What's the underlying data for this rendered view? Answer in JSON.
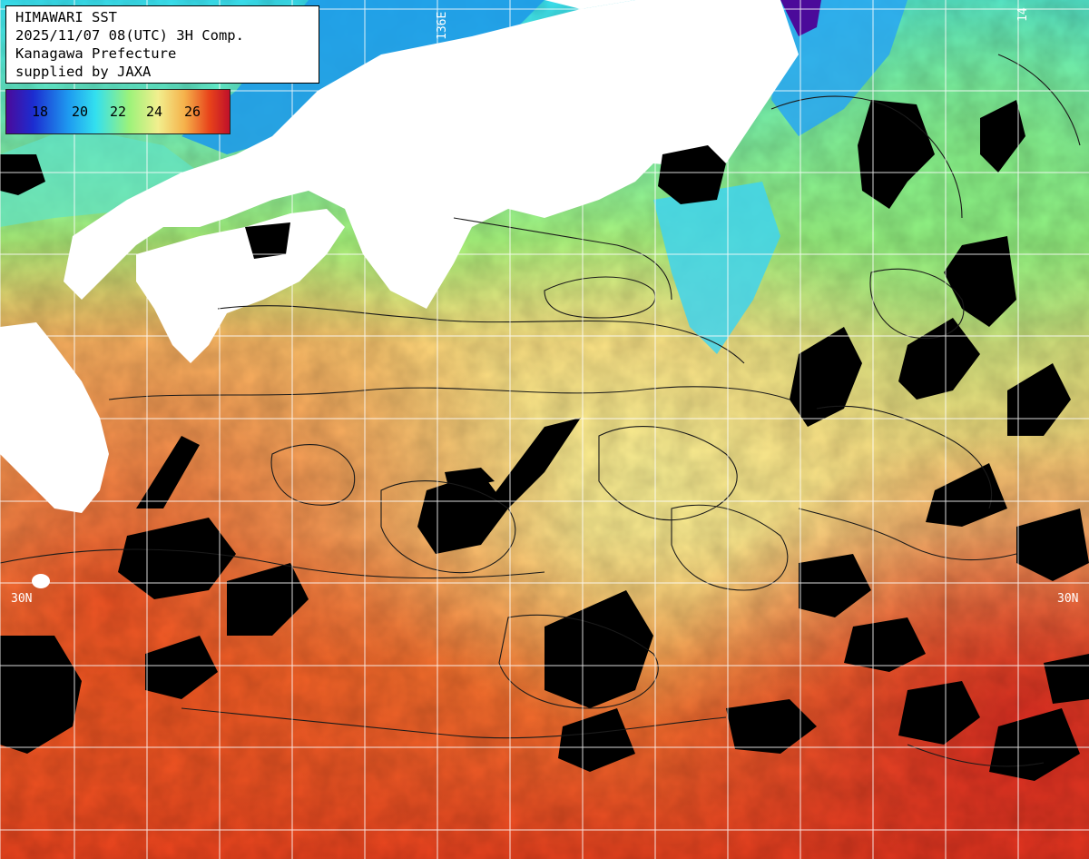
{
  "header": {
    "line1": "HIMAWARI SST",
    "line2": "2025/11/07 08(UTC) 3H Comp.",
    "line3": "Kanagawa Prefecture",
    "line4": "supplied by JAXA"
  },
  "legend": {
    "ticks": [
      "18",
      "20",
      "22",
      "24",
      "26"
    ]
  },
  "grid_labels": {
    "lon_left": "136E",
    "lon_right": "14",
    "lat_left": "30N",
    "lat_right": "30N"
  },
  "colors": {
    "land": "#ffffff",
    "cloud": "#000000",
    "grid": "#ffffff",
    "contour": "#1a1a1a",
    "sst_18": "#4b0a9a",
    "sst_20": "#1e9bf0",
    "sst_22": "#9cf27a",
    "sst_24": "#f2ef8e",
    "sst_26": "#e8431a",
    "sst_27": "#c0102a"
  },
  "icons": {
    "land": "white-landmass",
    "cloud": "black-cloud-mask"
  }
}
